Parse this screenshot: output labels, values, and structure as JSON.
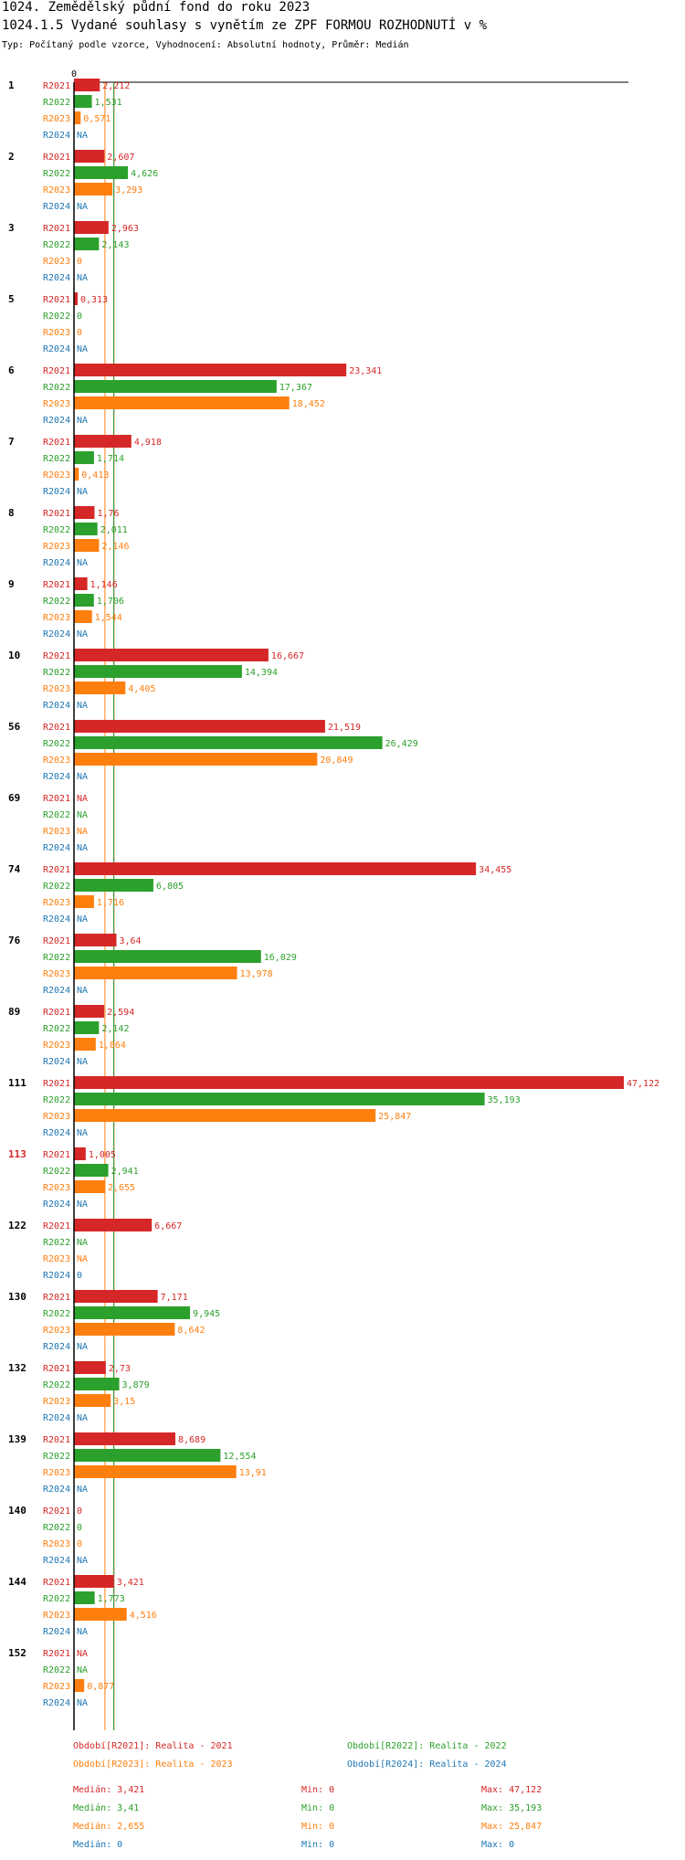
{
  "header": {
    "title": "1024. Zemědělský půdní fond  do roku 2023",
    "subtitle": "1024.1.5 Vydané souhlasy s vynětím ze ZPF FORMOU ROZHODNUTÍ v %",
    "type_line": "Typ: Počítaný podle vzorce, Vyhodnocení: Absolutní hodnoty, Průměr: Medián"
  },
  "colors": {
    "R2021": "#d62728",
    "R2022": "#2ca02c",
    "R2023": "#ff7f0e",
    "R2024": "#1f77b4",
    "highlight_group": "#d62728",
    "group_label": "#000000"
  },
  "chart_data": {
    "type": "bar",
    "orientation": "horizontal",
    "title": "1024.1.5 Vydané souhlasy s vynětím ze ZPF FORMOU ROZHODNUTÍ v %",
    "axis_zero_label": "0",
    "xlim": [
      0,
      47.122
    ],
    "series_names": [
      "R2021",
      "R2022",
      "R2023",
      "R2024"
    ],
    "median_lines": [
      3.421,
      3.41,
      2.655,
      0
    ],
    "groups": [
      {
        "label": "1",
        "highlight": false,
        "values": [
          2.212,
          1.531,
          0.571,
          null
        ],
        "labels": [
          "2,212",
          "1,531",
          "0,571",
          "NA"
        ]
      },
      {
        "label": "2",
        "highlight": false,
        "values": [
          2.607,
          4.626,
          3.293,
          null
        ],
        "labels": [
          "2,607",
          "4,626",
          "3,293",
          "NA"
        ]
      },
      {
        "label": "3",
        "highlight": false,
        "values": [
          2.963,
          2.143,
          0,
          null
        ],
        "labels": [
          "2,963",
          "2,143",
          "0",
          "NA"
        ]
      },
      {
        "label": "5",
        "highlight": false,
        "values": [
          0.313,
          0,
          0,
          null
        ],
        "labels": [
          "0,313",
          "0",
          "0",
          "NA"
        ]
      },
      {
        "label": "6",
        "highlight": false,
        "values": [
          23.341,
          17.367,
          18.452,
          null
        ],
        "labels": [
          "23,341",
          "17,367",
          "18,452",
          "NA"
        ]
      },
      {
        "label": "7",
        "highlight": false,
        "values": [
          4.918,
          1.714,
          0.413,
          null
        ],
        "labels": [
          "4,918",
          "1,714",
          "0,413",
          "NA"
        ]
      },
      {
        "label": "8",
        "highlight": false,
        "values": [
          1.76,
          2.011,
          2.146,
          null
        ],
        "labels": [
          "1,76",
          "2,011",
          "2,146",
          "NA"
        ]
      },
      {
        "label": "9",
        "highlight": false,
        "values": [
          1.146,
          1.706,
          1.544,
          null
        ],
        "labels": [
          "1,146",
          "1,706",
          "1,544",
          "NA"
        ]
      },
      {
        "label": "10",
        "highlight": false,
        "values": [
          16.667,
          14.394,
          4.405,
          null
        ],
        "labels": [
          "16,667",
          "14,394",
          "4,405",
          "NA"
        ]
      },
      {
        "label": "56",
        "highlight": false,
        "values": [
          21.519,
          26.429,
          20.849,
          null
        ],
        "labels": [
          "21,519",
          "26,429",
          "20,849",
          "NA"
        ]
      },
      {
        "label": "69",
        "highlight": false,
        "values": [
          null,
          null,
          null,
          null
        ],
        "labels": [
          "NA",
          "NA",
          "NA",
          "NA"
        ]
      },
      {
        "label": "74",
        "highlight": false,
        "values": [
          34.455,
          6.805,
          1.716,
          null
        ],
        "labels": [
          "34,455",
          "6,805",
          "1,716",
          "NA"
        ]
      },
      {
        "label": "76",
        "highlight": false,
        "values": [
          3.64,
          16.029,
          13.978,
          null
        ],
        "labels": [
          "3,64",
          "16,029",
          "13,978",
          "NA"
        ]
      },
      {
        "label": "89",
        "highlight": false,
        "values": [
          2.594,
          2.142,
          1.864,
          null
        ],
        "labels": [
          "2,594",
          "2,142",
          "1,864",
          "NA"
        ]
      },
      {
        "label": "111",
        "highlight": false,
        "values": [
          47.122,
          35.193,
          25.847,
          null
        ],
        "labels": [
          "47,122",
          "35,193",
          "25,847",
          "NA"
        ]
      },
      {
        "label": "113",
        "highlight": true,
        "values": [
          1.005,
          2.941,
          2.655,
          null
        ],
        "labels": [
          "1,005",
          "2,941",
          "2,655",
          "NA"
        ]
      },
      {
        "label": "122",
        "highlight": false,
        "values": [
          6.667,
          null,
          null,
          0
        ],
        "labels": [
          "6,667",
          "NA",
          "NA",
          "0"
        ]
      },
      {
        "label": "130",
        "highlight": false,
        "values": [
          7.171,
          9.945,
          8.642,
          null
        ],
        "labels": [
          "7,171",
          "9,945",
          "8,642",
          "NA"
        ]
      },
      {
        "label": "132",
        "highlight": false,
        "values": [
          2.73,
          3.879,
          3.15,
          null
        ],
        "labels": [
          "2,73",
          "3,879",
          "3,15",
          "NA"
        ]
      },
      {
        "label": "139",
        "highlight": false,
        "values": [
          8.689,
          12.554,
          13.91,
          null
        ],
        "labels": [
          "8,689",
          "12,554",
          "13,91",
          "NA"
        ]
      },
      {
        "label": "140",
        "highlight": false,
        "values": [
          0,
          0,
          0,
          null
        ],
        "labels": [
          "0",
          "0",
          "0",
          "NA"
        ]
      },
      {
        "label": "144",
        "highlight": false,
        "values": [
          3.421,
          1.773,
          4.516,
          null
        ],
        "labels": [
          "3,421",
          "1,773",
          "4,516",
          "NA"
        ]
      },
      {
        "label": "152",
        "highlight": false,
        "values": [
          null,
          null,
          0.877,
          null
        ],
        "labels": [
          "NA",
          "NA",
          "0,877",
          "NA"
        ]
      }
    ],
    "legend": [
      {
        "key": "R2021",
        "text": "Období[R2021]: Realita - 2021"
      },
      {
        "key": "R2022",
        "text": "Období[R2022]: Realita - 2022"
      },
      {
        "key": "R2023",
        "text": "Období[R2023]: Realita - 2023"
      },
      {
        "key": "R2024",
        "text": "Období[R2024]: Realita - 2024"
      }
    ],
    "stats": [
      {
        "key": "R2021",
        "median": "Medián: 3,421",
        "min": "Min: 0",
        "max": "Max: 47,122"
      },
      {
        "key": "R2022",
        "median": "Medián: 3,41",
        "min": "Min: 0",
        "max": "Max: 35,193"
      },
      {
        "key": "R2023",
        "median": "Medián: 2,655",
        "min": "Min: 0",
        "max": "Max: 25,847"
      },
      {
        "key": "R2024",
        "median": "Medián: 0",
        "min": "Min: 0",
        "max": "Max: 0"
      }
    ]
  }
}
